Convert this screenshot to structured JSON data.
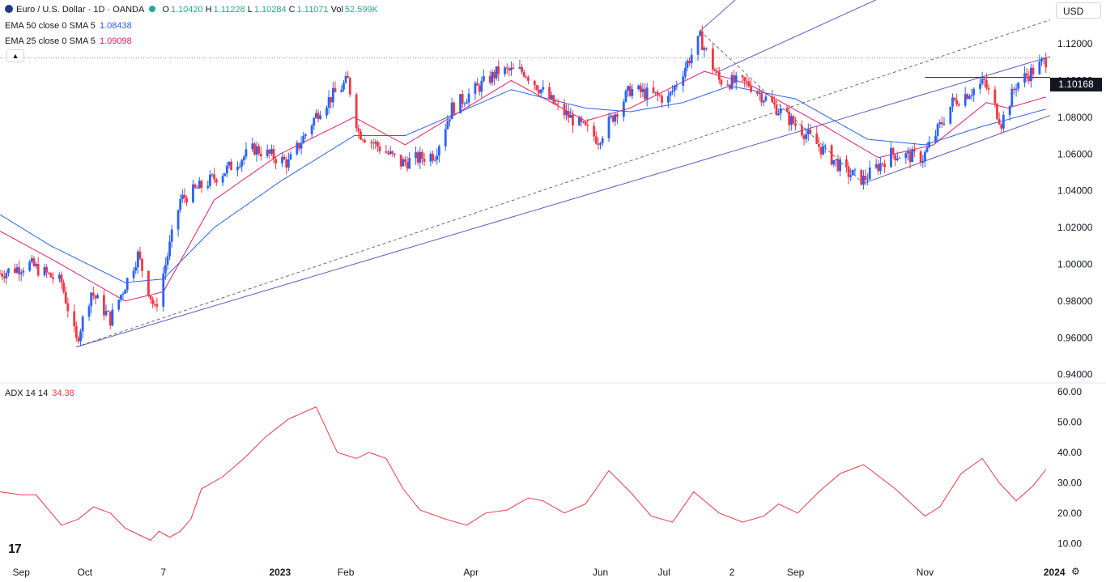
{
  "header": {
    "symbol": "Euro / U.S. Dollar · 1D · OANDA",
    "o_label": "O",
    "o_value": "1.10420",
    "h_label": "H",
    "h_value": "1.11228",
    "l_label": "L",
    "l_value": "1.10284",
    "c_label": "C",
    "c_value": "1.11071",
    "vol_label": "Vol",
    "vol_value": "52.599K",
    "currency_button": "USD",
    "collapse_icon": "chevron-up-icon"
  },
  "indicators": {
    "ema50_label": "EMA 50 close 0 SMA 5",
    "ema50_value": "1.08438",
    "ema25_label": "EMA 25 close 0 SMA 5",
    "ema25_value": "1.09098",
    "adx_label": "ADX 14 14",
    "adx_value": "34.38"
  },
  "price_badge": "1.10168",
  "colors": {
    "up": "#2962ff",
    "down": "#f23645",
    "ema50": "#2962ff",
    "ema25": "#e91e63",
    "adx": "#f23645",
    "pitchfork": "#5b5fc7",
    "trend": "#131722"
  },
  "chart_data": [
    {
      "type": "candlestick",
      "title": "Euro / U.S. Dollar · 1D · OANDA",
      "ylim": [
        0.935,
        1.135
      ],
      "y_ticks": [
        "0.94000",
        "0.96000",
        "0.98000",
        "1.00000",
        "1.02000",
        "1.04000",
        "1.06000",
        "1.08000",
        "1.10000",
        "1.12000"
      ],
      "x_labels": [
        "Sep",
        "Oct",
        "7",
        "2023",
        "Feb",
        "Apr",
        "Jun",
        "Jul",
        "2",
        "Sep",
        "Nov",
        "2024"
      ],
      "x_label_dates": [
        "2022-09-01",
        "2022-10-01",
        "2022-11-07",
        "2023-01-01",
        "2023-02-01",
        "2023-04-01",
        "2023-06-01",
        "2023-07-01",
        "2023-08-02",
        "2023-09-01",
        "2023-11-01",
        "2024-01-01"
      ],
      "x_range": [
        "2022-08-22",
        "2023-12-30"
      ],
      "close_anchors": [
        [
          "2022-08-22",
          0.995
        ],
        [
          "2022-09-05",
          1.0
        ],
        [
          "2022-09-20",
          0.99
        ],
        [
          "2022-09-27",
          0.958
        ],
        [
          "2022-10-04",
          0.985
        ],
        [
          "2022-10-13",
          0.97
        ],
        [
          "2022-10-26",
          1.005
        ],
        [
          "2022-11-03",
          0.975
        ],
        [
          "2022-11-15",
          1.035
        ],
        [
          "2022-12-05",
          1.05
        ],
        [
          "2022-12-20",
          1.063
        ],
        [
          "2023-01-05",
          1.055
        ],
        [
          "2023-01-20",
          1.085
        ],
        [
          "2023-02-02",
          1.1
        ],
        [
          "2023-02-07",
          1.072
        ],
        [
          "2023-02-27",
          1.055
        ],
        [
          "2023-03-15",
          1.06
        ],
        [
          "2023-03-23",
          1.085
        ],
        [
          "2023-04-14",
          1.105
        ],
        [
          "2023-04-26",
          1.105
        ],
        [
          "2023-05-12",
          1.085
        ],
        [
          "2023-05-31",
          1.068
        ],
        [
          "2023-06-15",
          1.095
        ],
        [
          "2023-07-03",
          1.09
        ],
        [
          "2023-07-18",
          1.123
        ],
        [
          "2023-07-27",
          1.1
        ],
        [
          "2023-08-10",
          1.098
        ],
        [
          "2023-09-05",
          1.072
        ],
        [
          "2023-09-25",
          1.05
        ],
        [
          "2023-10-03",
          1.046
        ],
        [
          "2023-10-16",
          1.06
        ],
        [
          "2023-10-31",
          1.058
        ],
        [
          "2023-11-14",
          1.088
        ],
        [
          "2023-11-29",
          1.099
        ],
        [
          "2023-12-07",
          1.077
        ],
        [
          "2023-12-14",
          1.098
        ],
        [
          "2023-12-28",
          1.111
        ]
      ],
      "ema50_anchors": [
        [
          "2022-08-22",
          1.027
        ],
        [
          "2022-09-15",
          1.01
        ],
        [
          "2022-10-20",
          0.99
        ],
        [
          "2022-11-07",
          0.992
        ],
        [
          "2022-12-01",
          1.02
        ],
        [
          "2023-01-01",
          1.045
        ],
        [
          "2023-02-05",
          1.07
        ],
        [
          "2023-03-01",
          1.07
        ],
        [
          "2023-04-20",
          1.095
        ],
        [
          "2023-05-25",
          1.085
        ],
        [
          "2023-06-15",
          1.083
        ],
        [
          "2023-07-10",
          1.088
        ],
        [
          "2023-08-01",
          1.097
        ],
        [
          "2023-09-01",
          1.09
        ],
        [
          "2023-10-05",
          1.068
        ],
        [
          "2023-11-01",
          1.065
        ],
        [
          "2023-11-28",
          1.075
        ],
        [
          "2023-12-28",
          1.0844
        ]
      ],
      "ema25_anchors": [
        [
          "2022-08-22",
          1.018
        ],
        [
          "2022-09-15",
          1.003
        ],
        [
          "2022-10-20",
          0.98
        ],
        [
          "2022-11-07",
          0.985
        ],
        [
          "2022-12-01",
          1.035
        ],
        [
          "2023-01-01",
          1.06
        ],
        [
          "2023-02-05",
          1.08
        ],
        [
          "2023-03-01",
          1.065
        ],
        [
          "2023-04-20",
          1.1
        ],
        [
          "2023-05-25",
          1.078
        ],
        [
          "2023-06-15",
          1.085
        ],
        [
          "2023-07-20",
          1.105
        ],
        [
          "2023-08-10",
          1.098
        ],
        [
          "2023-09-15",
          1.075
        ],
        [
          "2023-10-10",
          1.058
        ],
        [
          "2023-11-05",
          1.065
        ],
        [
          "2023-11-30",
          1.088
        ],
        [
          "2023-12-10",
          1.085
        ],
        [
          "2023-12-28",
          1.091
        ]
      ],
      "horizontal_level": 1.10168,
      "dotted_level": 1.1123,
      "pitchfork": [
        {
          "style": "dashed",
          "p1": [
            "2022-09-27",
            0.955
          ],
          "p2": [
            "2023-12-30",
            1.133
          ]
        },
        {
          "style": "solid",
          "p1": [
            "2022-09-27",
            0.955
          ],
          "p2": [
            "2023-12-30",
            1.113
          ]
        },
        {
          "style": "dashed",
          "p1": [
            "2023-07-18",
            1.127
          ],
          "p2": [
            "2023-10-03",
            1.044
          ]
        },
        {
          "style": "solid",
          "p1": [
            "2023-07-18",
            1.127
          ],
          "p2": [
            "2023-09-18",
            1.19
          ]
        },
        {
          "style": "solid",
          "p1": [
            "2023-07-25",
            1.104
          ],
          "p2": [
            "2023-12-30",
            1.187
          ]
        },
        {
          "style": "solid",
          "p1": [
            "2023-10-03",
            1.044
          ],
          "p2": [
            "2023-12-30",
            1.081
          ]
        }
      ]
    },
    {
      "type": "line",
      "title": "ADX 14 14",
      "ylim": [
        5,
        60
      ],
      "y_ticks": [
        "10.00",
        "20.00",
        "30.00",
        "40.00",
        "50.00",
        "60.00"
      ],
      "series": [
        {
          "name": "ADX 14 14",
          "points": [
            [
              "2022-08-22",
              27
            ],
            [
              "2022-09-01",
              26
            ],
            [
              "2022-09-08",
              26
            ],
            [
              "2022-09-20",
              16
            ],
            [
              "2022-09-28",
              18
            ],
            [
              "2022-10-05",
              22
            ],
            [
              "2022-10-13",
              20
            ],
            [
              "2022-10-20",
              15
            ],
            [
              "2022-11-01",
              11
            ],
            [
              "2022-11-05",
              14
            ],
            [
              "2022-11-10",
              12
            ],
            [
              "2022-11-15",
              14
            ],
            [
              "2022-11-20",
              18
            ],
            [
              "2022-11-25",
              28
            ],
            [
              "2022-12-05",
              32
            ],
            [
              "2022-12-15",
              38
            ],
            [
              "2022-12-25",
              45
            ],
            [
              "2023-01-05",
              51
            ],
            [
              "2023-01-18",
              55
            ],
            [
              "2023-01-28",
              40
            ],
            [
              "2023-02-06",
              38
            ],
            [
              "2023-02-12",
              40
            ],
            [
              "2023-02-20",
              38
            ],
            [
              "2023-02-28",
              28
            ],
            [
              "2023-03-08",
              21
            ],
            [
              "2023-03-20",
              18
            ],
            [
              "2023-03-30",
              16
            ],
            [
              "2023-04-08",
              20
            ],
            [
              "2023-04-18",
              21
            ],
            [
              "2023-04-28",
              25
            ],
            [
              "2023-05-05",
              24
            ],
            [
              "2023-05-15",
              20
            ],
            [
              "2023-05-25",
              23
            ],
            [
              "2023-06-05",
              34
            ],
            [
              "2023-06-15",
              27
            ],
            [
              "2023-06-25",
              19
            ],
            [
              "2023-07-05",
              17
            ],
            [
              "2023-07-15",
              27
            ],
            [
              "2023-07-27",
              20
            ],
            [
              "2023-08-07",
              17
            ],
            [
              "2023-08-17",
              19
            ],
            [
              "2023-08-24",
              23
            ],
            [
              "2023-09-02",
              20
            ],
            [
              "2023-09-12",
              27
            ],
            [
              "2023-09-22",
              33
            ],
            [
              "2023-10-03",
              36
            ],
            [
              "2023-10-18",
              28
            ],
            [
              "2023-11-01",
              19
            ],
            [
              "2023-11-08",
              22
            ],
            [
              "2023-11-18",
              33
            ],
            [
              "2023-11-28",
              38
            ],
            [
              "2023-12-06",
              30
            ],
            [
              "2023-12-14",
              24
            ],
            [
              "2023-12-22",
              29
            ],
            [
              "2023-12-28",
              34.38
            ]
          ]
        }
      ]
    }
  ]
}
